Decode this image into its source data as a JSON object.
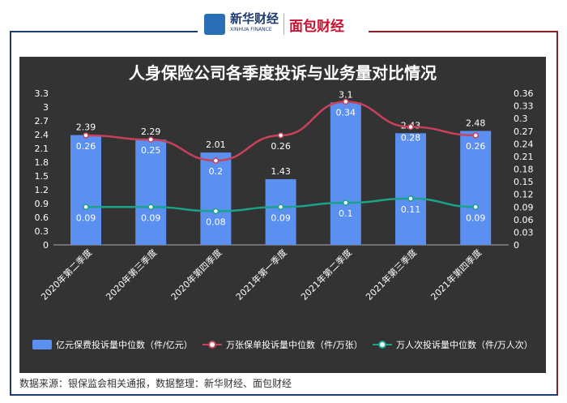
{
  "header": {
    "logo_xinhua": "新华财经",
    "logo_xinhua_en": "XINHUA FINANCE",
    "logo_mianbao": "面包财经"
  },
  "title": "人身保险公司各季度投诉与业务量对比情况",
  "source": "数据来源：银保监会相关通报，数据整理：新华财经、面包财经",
  "chart_data": {
    "type": "bar+line",
    "title": "人身保险公司各季度投诉与业务量对比情况",
    "categories": [
      "2020年第二季度",
      "2020年第三季度",
      "2020年第四季度",
      "2021年第一季度",
      "2021年第二季度",
      "2021年第三季度",
      "2021年第四季度"
    ],
    "y_left": {
      "range": [
        0,
        3.3
      ],
      "ticks": [
        "0",
        "0.3",
        "0.6",
        "0.9",
        "1.2",
        "1.5",
        "1.8",
        "2.1",
        "2.4",
        "2.7",
        "3",
        "3.3"
      ]
    },
    "y_right": {
      "range": [
        0,
        0.36
      ],
      "ticks": [
        "0",
        "0.03",
        "0.06",
        "0.09",
        "0.12",
        "0.15",
        "0.18",
        "0.21",
        "0.24",
        "0.27",
        "0.3",
        "0.33",
        "0.36"
      ]
    },
    "series": [
      {
        "name": "亿元保费投诉量中位数（件/亿元）",
        "type": "bar",
        "axis": "left",
        "color": "#5b8ff0",
        "values": [
          2.39,
          2.29,
          2.01,
          1.43,
          3.1,
          2.43,
          2.48
        ]
      },
      {
        "name": "万张保单投诉量中位数（件/万张）",
        "type": "line",
        "axis": "right",
        "color": "#c8415a",
        "values": [
          0.26,
          0.25,
          0.2,
          0.26,
          0.34,
          0.28,
          0.26
        ]
      },
      {
        "name": "万人次投诉量中位数（件/万人次）",
        "type": "line",
        "axis": "right",
        "color": "#1aa388",
        "values": [
          0.09,
          0.09,
          0.08,
          0.09,
          0.1,
          0.11,
          0.09
        ]
      }
    ],
    "legend": "bottom",
    "grid": false
  }
}
